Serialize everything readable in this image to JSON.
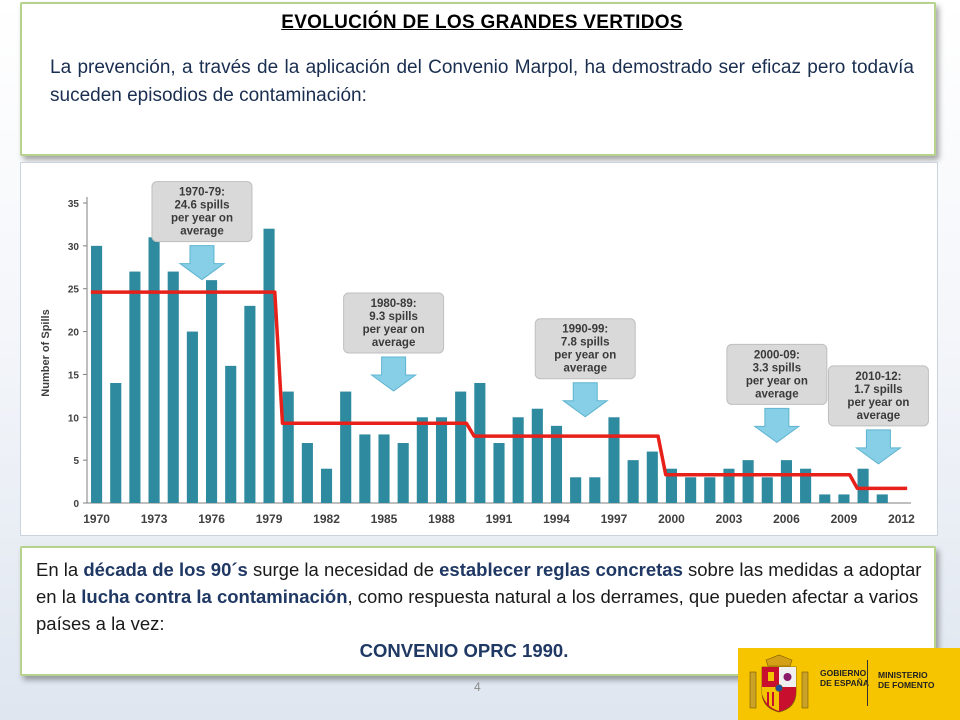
{
  "header": {
    "title": "EVOLUCIÓN DE LOS GRANDES VERTIDOS",
    "intro": "La prevención, a través de la aplicación del Convenio Marpol, ha demostrado ser eficaz pero todavía suceden episodios de contaminación:"
  },
  "chart_data": {
    "type": "bar",
    "ylabel": "Number of Spills",
    "ylim": [
      0,
      35
    ],
    "yticks": [
      0,
      5,
      10,
      15,
      20,
      25,
      30,
      35
    ],
    "xtick_labels": [
      "1970",
      "1973",
      "1976",
      "1979",
      "1982",
      "1985",
      "1988",
      "1991",
      "1994",
      "1997",
      "2000",
      "2003",
      "2006",
      "2009",
      "2012"
    ],
    "categories": [
      "1970",
      "1971",
      "1972",
      "1973",
      "1974",
      "1975",
      "1976",
      "1977",
      "1978",
      "1979",
      "1980",
      "1981",
      "1982",
      "1983",
      "1984",
      "1985",
      "1986",
      "1987",
      "1988",
      "1989",
      "1990",
      "1991",
      "1992",
      "1993",
      "1994",
      "1995",
      "1996",
      "1997",
      "1998",
      "1999",
      "2000",
      "2001",
      "2002",
      "2003",
      "2004",
      "2005",
      "2006",
      "2007",
      "2008",
      "2009",
      "2010",
      "2011",
      "2012"
    ],
    "values": [
      30,
      14,
      27,
      31,
      27,
      20,
      26,
      16,
      23,
      32,
      13,
      7,
      4,
      13,
      8,
      8,
      7,
      10,
      10,
      13,
      14,
      7,
      10,
      11,
      9,
      3,
      3,
      10,
      5,
      6,
      4,
      3,
      3,
      4,
      5,
      3,
      5,
      4,
      1,
      1,
      4,
      1,
      null
    ],
    "bar_color": "#2e8a9e",
    "average_line": {
      "color": "#e8201a",
      "segments": [
        {
          "from": 1970,
          "to": 1979,
          "value": 24.6
        },
        {
          "from": 1980,
          "to": 1989,
          "value": 9.3
        },
        {
          "from": 1990,
          "to": 1999,
          "value": 7.8
        },
        {
          "from": 2000,
          "to": 2009,
          "value": 3.3
        },
        {
          "from": 2010,
          "to": 2012,
          "value": 1.7
        }
      ]
    },
    "annotations": [
      {
        "lines": [
          "1970-79:",
          "24.6 spills",
          "per year on",
          "average"
        ],
        "year": 1975.5,
        "value": 30.5
      },
      {
        "lines": [
          "1980-89:",
          "9.3 spills",
          "per year on",
          "average"
        ],
        "year": 1985.5,
        "value": 17.5
      },
      {
        "lines": [
          "1990-99:",
          "7.8 spills",
          "per year on",
          "average"
        ],
        "year": 1995.5,
        "value": 14.5
      },
      {
        "lines": [
          "2000-09:",
          "3.3 spills",
          "per year on",
          "average"
        ],
        "year": 2005.5,
        "value": 11.5
      },
      {
        "lines": [
          "2010-12:",
          "1.7 spills",
          "per year on",
          "average"
        ],
        "year": 2010.8,
        "value": 9.0
      }
    ],
    "grid": false
  },
  "footer": {
    "text_1": "En la ",
    "emph_1": "década de los 90´s",
    "text_2": " surge la necesidad de ",
    "emph_2": "establecer reglas concretas",
    "text_3": " sobre las medidas a adoptar en la ",
    "emph_3": "lucha contra la contaminación",
    "text_4": ", como respuesta natural a los derrames, que pueden afectar a varios países a la vez:",
    "convention": "CONVENIO OPRC 1990",
    "convention_suffix": "."
  },
  "page_number": "4",
  "logo": {
    "gov_line1": "GOBIERNO",
    "gov_line2": "DE ESPAÑA",
    "min_line1": "MINISTERIO",
    "min_line2": "DE FOMENTO",
    "background": "#f6c500"
  }
}
